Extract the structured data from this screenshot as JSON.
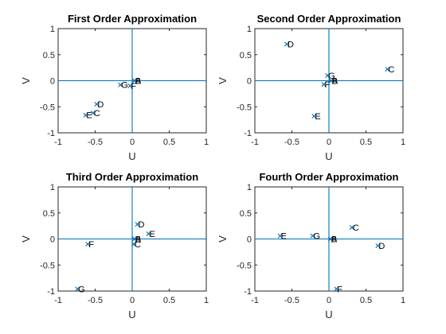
{
  "figure": {
    "background": "#ffffff",
    "line_color": "#0072bd"
  },
  "chart_data": [
    {
      "type": "scatter",
      "title": "First Order Approximation",
      "xlabel": "U",
      "ylabel": "V",
      "xlim": [
        -1,
        1
      ],
      "ylim": [
        -1,
        1
      ],
      "xticks": [
        "-1",
        "-0.5",
        "0",
        "0.5",
        "1"
      ],
      "yticks": [
        "1",
        "0.5",
        "0",
        "-0.5",
        "-1"
      ],
      "points": [
        {
          "label": "A",
          "x": 0.03,
          "y": 0.0
        },
        {
          "label": "B",
          "x": 0.03,
          "y": 0.0
        },
        {
          "label": "C",
          "x": -0.53,
          "y": -0.62
        },
        {
          "label": "D",
          "x": -0.48,
          "y": -0.45
        },
        {
          "label": "E",
          "x": -0.63,
          "y": -0.66
        },
        {
          "label": "F",
          "x": -0.03,
          "y": -0.1
        },
        {
          "label": "G",
          "x": -0.16,
          "y": -0.08
        }
      ]
    },
    {
      "type": "scatter",
      "title": "Second Order Approximation",
      "xlabel": "U",
      "ylabel": "V",
      "xlim": [
        -1,
        1
      ],
      "ylim": [
        -1,
        1
      ],
      "xticks": [
        "-1",
        "-0.5",
        "0",
        "0.5",
        "1"
      ],
      "yticks": [
        "1",
        "0.5",
        "0",
        "-0.5",
        "-1"
      ],
      "points": [
        {
          "label": "A",
          "x": 0.03,
          "y": 0.0
        },
        {
          "label": "B",
          "x": 0.03,
          "y": 0.0
        },
        {
          "label": "C",
          "x": 0.79,
          "y": 0.22
        },
        {
          "label": "D",
          "x": -0.57,
          "y": 0.7
        },
        {
          "label": "E",
          "x": -0.2,
          "y": -0.68
        },
        {
          "label": "F",
          "x": -0.07,
          "y": -0.07
        },
        {
          "label": "G",
          "x": -0.02,
          "y": 0.1
        }
      ]
    },
    {
      "type": "scatter",
      "title": "Third Order Approximation",
      "xlabel": "U",
      "ylabel": "V",
      "xlim": [
        -1,
        1
      ],
      "ylim": [
        -1,
        1
      ],
      "xticks": [
        "-1",
        "-0.5",
        "0",
        "0.5",
        "1"
      ],
      "yticks": [
        "1",
        "0.5",
        "0",
        "-0.5",
        "-1"
      ],
      "points": [
        {
          "label": "A",
          "x": 0.03,
          "y": 0.0
        },
        {
          "label": "B",
          "x": 0.03,
          "y": 0.0
        },
        {
          "label": "C",
          "x": 0.02,
          "y": -0.1
        },
        {
          "label": "D",
          "x": 0.07,
          "y": 0.28
        },
        {
          "label": "E",
          "x": 0.22,
          "y": 0.1
        },
        {
          "label": "F",
          "x": -0.6,
          "y": -0.1
        },
        {
          "label": "G",
          "x": -0.74,
          "y": -0.96
        }
      ]
    },
    {
      "type": "scatter",
      "title": "Fourth Order Approximation",
      "xlabel": "U",
      "ylabel": "V",
      "xlim": [
        -1,
        1
      ],
      "ylim": [
        -1,
        1
      ],
      "xticks": [
        "-1",
        "-0.5",
        "0",
        "0.5",
        "1"
      ],
      "yticks": [
        "1",
        "0.5",
        "0",
        "-0.5",
        "-1"
      ],
      "points": [
        {
          "label": "A",
          "x": 0.02,
          "y": 0.0
        },
        {
          "label": "B",
          "x": 0.02,
          "y": 0.0
        },
        {
          "label": "C",
          "x": 0.31,
          "y": 0.22
        },
        {
          "label": "D",
          "x": 0.66,
          "y": -0.13
        },
        {
          "label": "E",
          "x": -0.66,
          "y": 0.06
        },
        {
          "label": "F",
          "x": 0.1,
          "y": -0.96
        },
        {
          "label": "G",
          "x": -0.22,
          "y": 0.06
        }
      ]
    }
  ]
}
